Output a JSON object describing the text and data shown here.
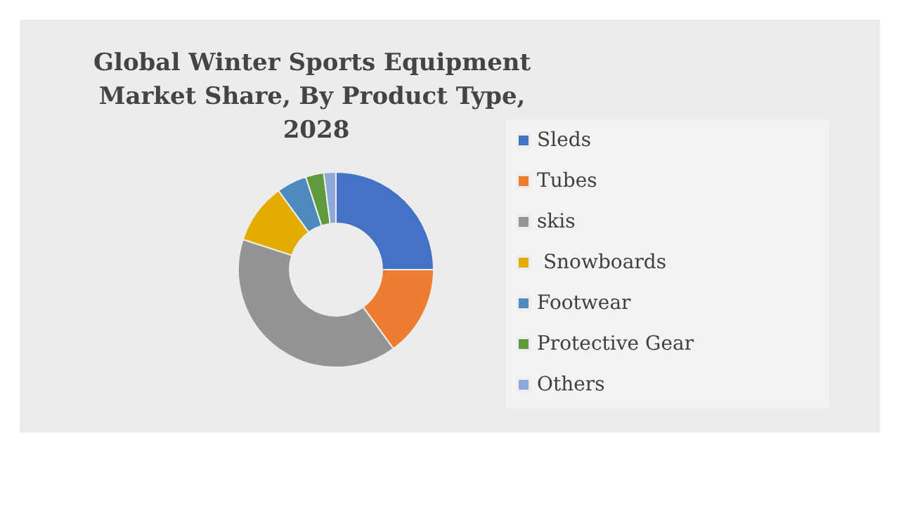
{
  "chart_data": {
    "type": "donut",
    "title": "Global Winter Sports Equipment Market Share, By Product Type, 2028",
    "categories": [
      "Sleds",
      "Tubes",
      "skis",
      " Snowboards",
      "Footwear",
      "Protective Gear",
      "Others"
    ],
    "values": [
      25,
      15,
      40,
      10,
      5,
      3,
      2
    ],
    "colors": [
      "#4472c4",
      "#ed7d31",
      "#949494",
      "#e5ac00",
      "#4e8ac0",
      "#5f9b3c",
      "#8fa8da"
    ],
    "legend": "right"
  }
}
